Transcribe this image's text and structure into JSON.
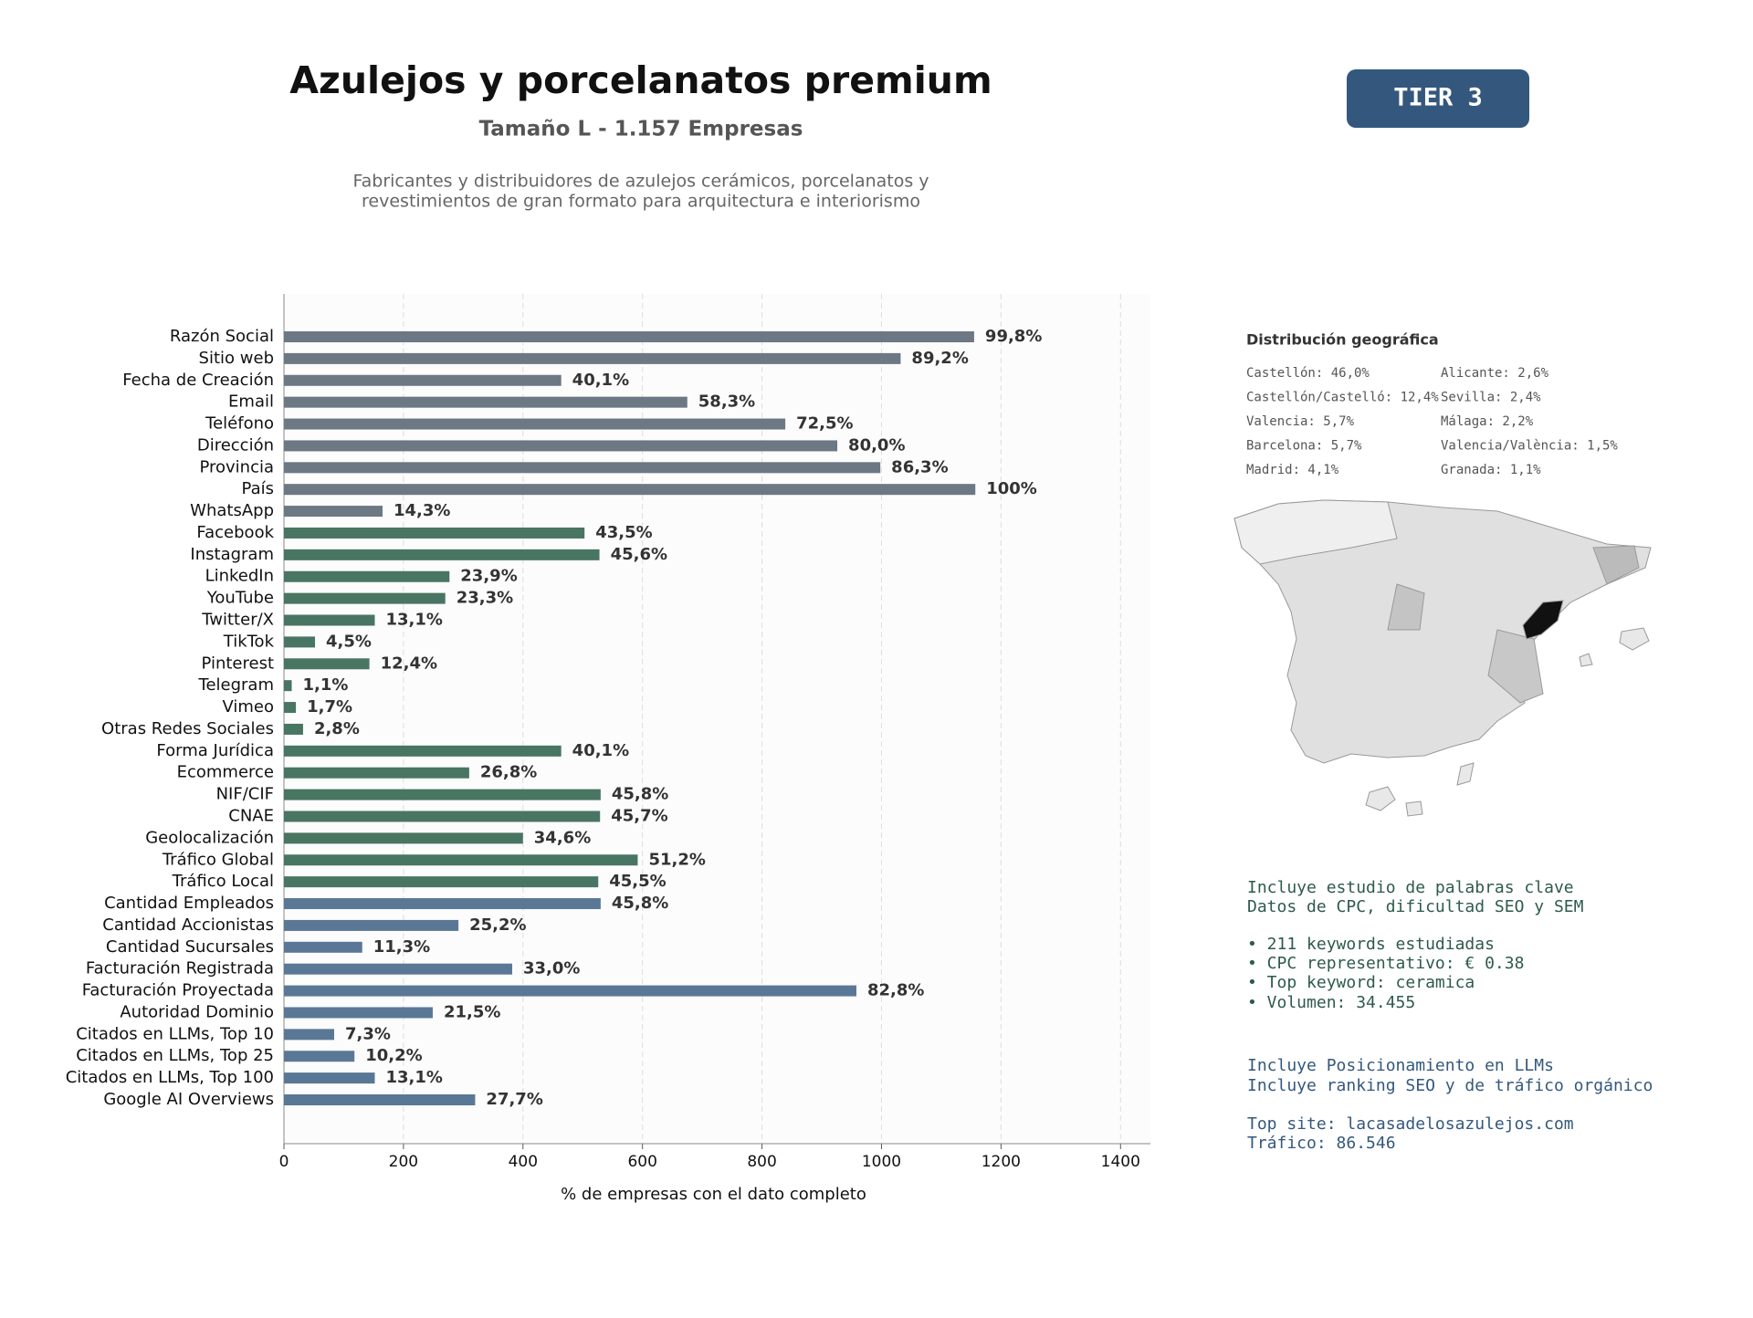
{
  "header": {
    "title": "Azulejos y porcelanatos premium",
    "subtitle": "Tamaño L - 1.157 Empresas",
    "description": [
      "Fabricantes y distribuidores de azulejos cerámicos, porcelanatos y",
      "revestimientos de gran formato para arquitectura e interiorismo"
    ],
    "tier": "TIER 3"
  },
  "chart_data": {
    "type": "barh",
    "xlabel": "% de empresas con el dato completo",
    "categories": [
      "Razón Social",
      "Sitio web",
      "Fecha de Creación",
      "Email",
      "Teléfono",
      "Dirección",
      "Provincia",
      "País",
      "WhatsApp",
      "Facebook",
      "Instagram",
      "LinkedIn",
      "YouTube",
      "Twitter/X",
      "TikTok",
      "Pinterest",
      "Telegram",
      "Vimeo",
      "Otras Redes Sociales",
      "Forma Jurídica",
      "Ecommerce",
      "NIF/CIF",
      "CNAE",
      "Geolocalización",
      "Tráfico Global",
      "Tráfico Local",
      "Cantidad Empleados",
      "Cantidad Accionistas",
      "Cantidad Sucursales",
      "Facturación Registrada",
      "Facturación Proyectada",
      "Autoridad Dominio",
      "Citados en LLMs, Top 10",
      "Citados en LLMs, Top 25",
      "Citados en LLMs, Top 100",
      "Google AI Overviews"
    ],
    "values": [
      1155,
      1032,
      464,
      675,
      839,
      926,
      998,
      1157,
      165,
      503,
      528,
      277,
      270,
      152,
      52,
      143,
      13,
      20,
      32,
      464,
      310,
      530,
      529,
      400,
      592,
      526,
      530,
      292,
      131,
      382,
      958,
      249,
      84,
      118,
      152,
      320
    ],
    "value_labels": [
      "99,8%",
      "89,2%",
      "40,1%",
      "58,3%",
      "72,5%",
      "80,0%",
      "86,3%",
      "100%",
      "14,3%",
      "43,5%",
      "45,6%",
      "23,9%",
      "23,3%",
      "13,1%",
      "4,5%",
      "12,4%",
      "1,1%",
      "1,7%",
      "2,8%",
      "40,1%",
      "26,8%",
      "45,8%",
      "45,7%",
      "34,6%",
      "51,2%",
      "45,5%",
      "45,8%",
      "25,2%",
      "11,3%",
      "33,0%",
      "82,8%",
      "21,5%",
      "7,3%",
      "10,2%",
      "13,1%",
      "27,7%"
    ],
    "colors": [
      "#6c7883",
      "#6c7883",
      "#6c7883",
      "#6c7883",
      "#6c7883",
      "#6c7883",
      "#6c7883",
      "#6c7883",
      "#6c7883",
      "#497563",
      "#497563",
      "#497563",
      "#497563",
      "#497563",
      "#497563",
      "#497563",
      "#497563",
      "#497563",
      "#497563",
      "#497563",
      "#497563",
      "#497563",
      "#497563",
      "#497563",
      "#497563",
      "#497563",
      "#5a7896",
      "#5a7896",
      "#5a7896",
      "#5a7896",
      "#5a7896",
      "#5a7896",
      "#5a7896",
      "#5a7896",
      "#5a7896",
      "#5a7896"
    ],
    "xlim": [
      0,
      1450
    ],
    "xticks": [
      0,
      200,
      400,
      600,
      800,
      1000,
      1200,
      1400
    ],
    "grid": true
  },
  "geo": {
    "title": "Distribución geográfica",
    "items": [
      [
        "Castellón: 46,0%",
        "Alicante: 2,6%"
      ],
      [
        "Castellón/Castelló: 12,4%",
        "Sevilla: 2,4%"
      ],
      [
        "Valencia: 5,7%",
        "Málaga: 2,2%"
      ],
      [
        "Barcelona: 5,7%",
        "Valencia/València: 1,5%"
      ],
      [
        "Madrid: 4,1%",
        "Granada: 1,1%"
      ]
    ]
  },
  "notes": {
    "seo": [
      "Incluye estudio de palabras clave",
      "Datos de CPC, dificultad SEO y SEM",
      "• 211 keywords estudiadas",
      "• CPC representativo: € 0.38",
      "• Top keyword: ceramica",
      "• Volumen: 34.455"
    ],
    "llm": [
      "Incluye Posicionamiento en LLMs",
      "Incluye ranking SEO y de tráfico orgánico",
      "Top site: lacasadelosazulejos.com",
      "Tráfico: 86.546"
    ]
  }
}
